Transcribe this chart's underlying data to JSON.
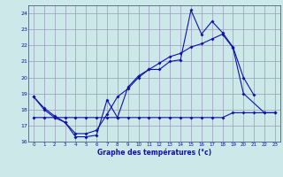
{
  "title": "Graphe des températures (°c)",
  "background_color": "#cce8e8",
  "grid_color": "#9999bb",
  "line_color": "#1111aa",
  "xlim_min": -0.5,
  "xlim_max": 23.5,
  "ylim_min": 16,
  "ylim_max": 24.5,
  "ytick_values": [
    16,
    17,
    18,
    19,
    20,
    21,
    22,
    23,
    24
  ],
  "xtick_values": [
    0,
    1,
    2,
    3,
    4,
    5,
    6,
    7,
    8,
    9,
    10,
    11,
    12,
    13,
    14,
    15,
    16,
    17,
    18,
    19,
    20,
    21,
    22,
    23
  ],
  "line1_x": [
    0,
    1,
    2,
    3,
    4,
    5,
    6,
    7,
    8,
    9,
    10,
    11,
    12,
    13,
    14,
    15,
    16,
    17,
    18,
    19,
    20,
    21
  ],
  "line1_y": [
    18.8,
    18.0,
    17.5,
    17.2,
    16.3,
    16.3,
    16.4,
    18.6,
    17.5,
    19.4,
    20.1,
    20.5,
    20.5,
    21.0,
    21.1,
    24.2,
    22.7,
    23.5,
    22.8,
    21.9,
    20.0,
    18.9
  ],
  "line2_x": [
    0,
    1,
    2,
    3,
    4,
    5,
    6,
    7,
    8,
    9,
    10,
    11,
    12,
    13,
    14,
    15,
    16,
    17,
    18,
    19,
    20,
    22,
    23
  ],
  "line2_y": [
    18.8,
    18.1,
    17.6,
    17.2,
    16.5,
    16.5,
    16.7,
    17.7,
    18.8,
    19.3,
    20.0,
    20.5,
    20.9,
    21.3,
    21.5,
    21.9,
    22.1,
    22.4,
    22.7,
    21.85,
    19.0,
    17.8,
    17.8
  ],
  "line3_x": [
    0,
    1,
    2,
    3,
    4,
    5,
    6,
    7,
    8,
    9,
    10,
    11,
    12,
    13,
    14,
    15,
    16,
    17,
    18,
    19,
    20,
    21,
    22,
    23
  ],
  "line3_y": [
    17.5,
    17.5,
    17.5,
    17.5,
    17.5,
    17.5,
    17.5,
    17.5,
    17.5,
    17.5,
    17.5,
    17.5,
    17.5,
    17.5,
    17.5,
    17.5,
    17.5,
    17.5,
    17.5,
    17.8,
    17.8,
    17.8,
    17.8,
    17.8
  ]
}
